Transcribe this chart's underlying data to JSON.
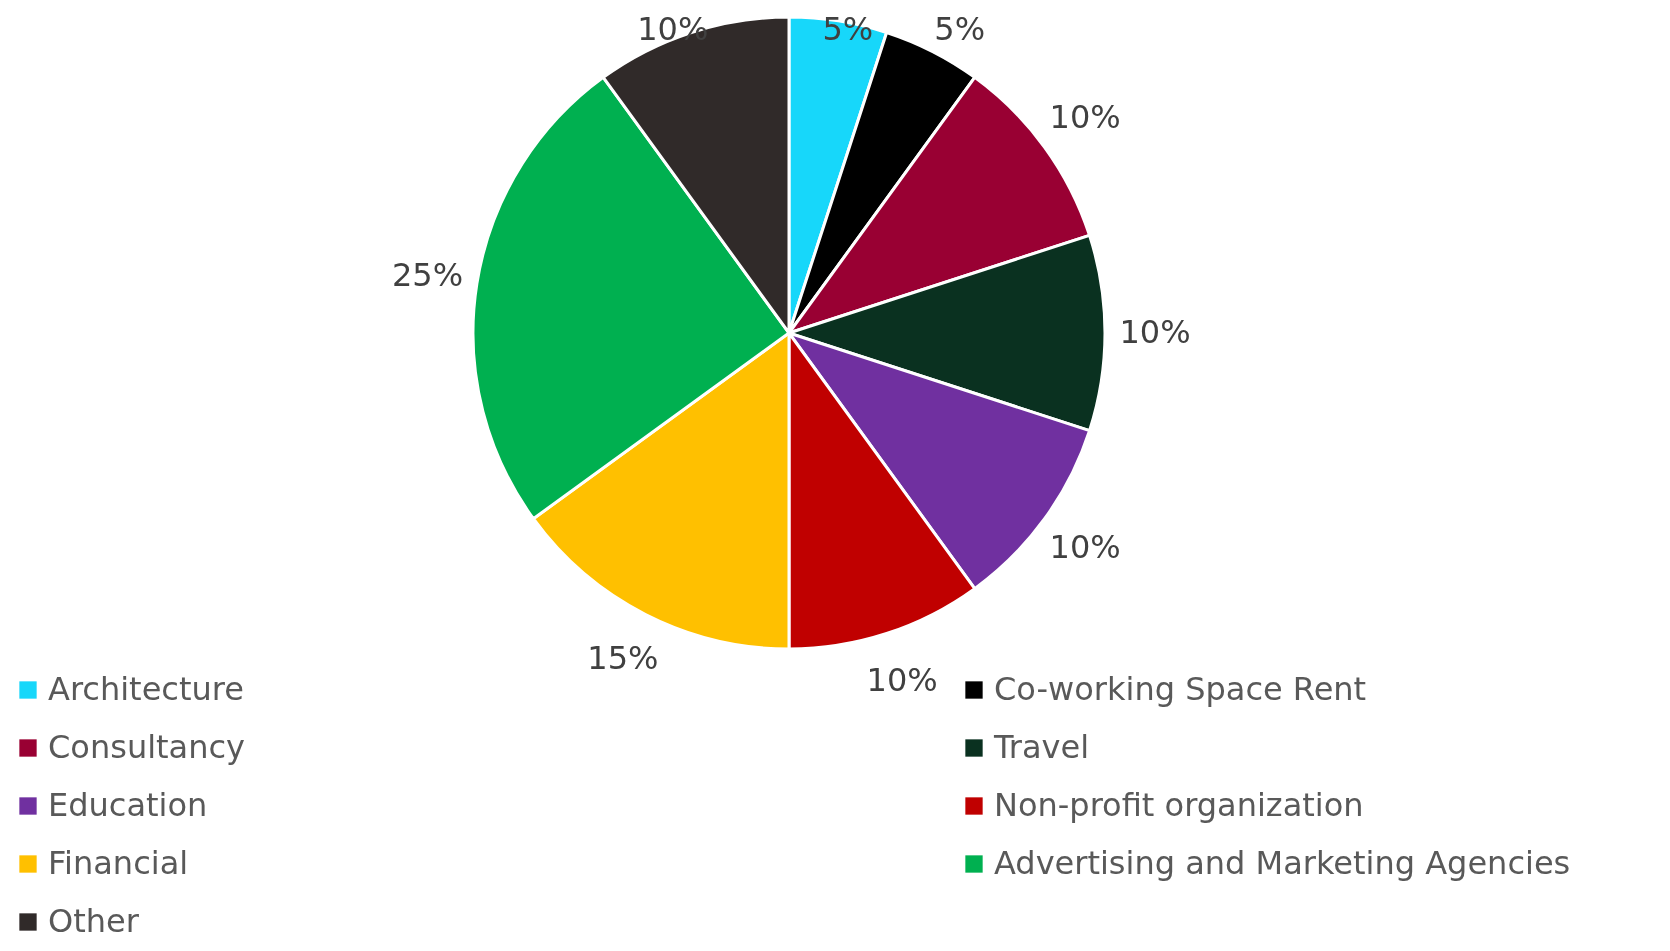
{
  "chart_data": {
    "type": "pie",
    "categories": [
      "Architecture",
      "Co-working Space Rent",
      "Consultancy",
      "Travel",
      "Education",
      "Non-profit organization",
      "Financial",
      "Advertising and Marketing Agencies",
      "Other"
    ],
    "values": [
      5,
      5,
      10,
      10,
      10,
      10,
      15,
      25,
      10
    ],
    "colors": [
      "#17d7fa",
      "#000000",
      "#990033",
      "#0a3120",
      "#7030a0",
      "#c00000",
      "#ffc000",
      "#00b050",
      "#302a29"
    ],
    "value_labels": [
      "5%",
      "5%",
      "10%",
      "10%",
      "10%",
      "10%",
      "15%",
      "25%",
      "10%"
    ],
    "legend": "bottom"
  }
}
